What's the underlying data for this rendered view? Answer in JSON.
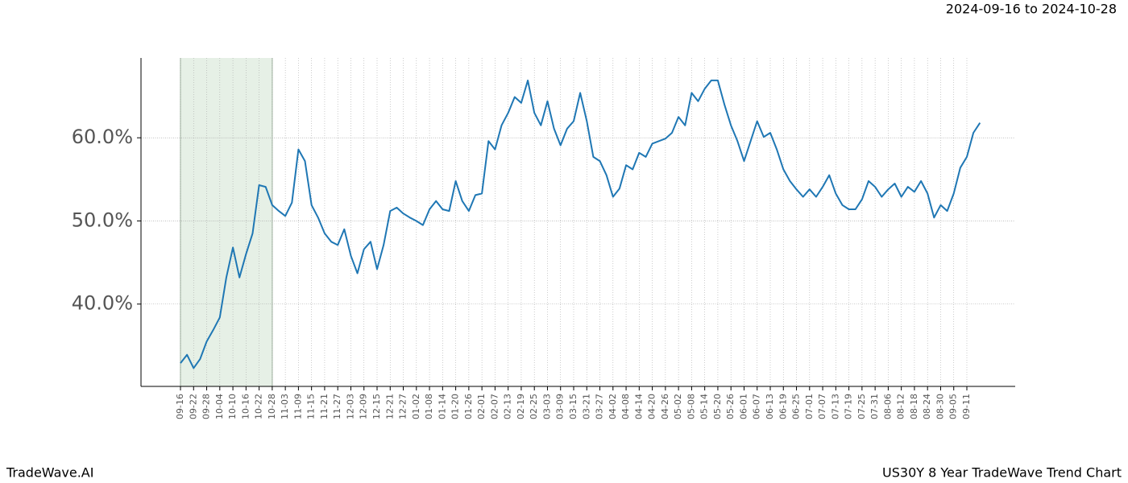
{
  "chart_data": {
    "type": "line",
    "title": "2024-09-16 to 2024-10-28",
    "footer_left": "TradeWave.AI",
    "footer_right": "US30Y 8 Year TradeWave Trend Chart",
    "categories": [
      "09-16",
      null,
      "09-22",
      null,
      "09-28",
      null,
      "10-04",
      null,
      "10-10",
      null,
      "10-16",
      null,
      "10-22",
      null,
      "10-28",
      null,
      "11-03",
      null,
      "11-09",
      null,
      "11-15",
      null,
      "11-21",
      null,
      "11-27",
      null,
      "12-03",
      null,
      "12-09",
      null,
      "12-15",
      null,
      "12-21",
      null,
      "12-27",
      null,
      "01-02",
      null,
      "01-08",
      null,
      "01-14",
      null,
      "01-20",
      null,
      "01-26",
      null,
      "02-01",
      null,
      "02-07",
      null,
      "02-13",
      null,
      "02-19",
      null,
      "02-25",
      null,
      "03-03",
      null,
      "03-09",
      null,
      "03-15",
      null,
      "03-21",
      null,
      "03-27",
      null,
      "04-02",
      null,
      "04-08",
      null,
      "04-14",
      null,
      "04-20",
      null,
      "04-26",
      null,
      "05-02",
      null,
      "05-08",
      null,
      "05-14",
      null,
      "05-20",
      null,
      "05-26",
      null,
      "06-01",
      null,
      "06-07",
      null,
      "06-13",
      null,
      "06-19",
      null,
      "06-25",
      null,
      "07-01",
      null,
      "07-07",
      null,
      "07-13",
      null,
      "07-19",
      null,
      "07-25",
      null,
      "07-31",
      null,
      "08-06",
      null,
      "08-12",
      null,
      "08-18",
      null,
      "08-24",
      null,
      "08-30",
      null,
      "09-05",
      null,
      "09-11",
      null,
      null
    ],
    "series": [
      {
        "color": "#1f77b4",
        "values": [
          32.9,
          33.9,
          32.3,
          33.4,
          35.5,
          36.9,
          38.4,
          43.2,
          46.8,
          43.2,
          46.0,
          48.5,
          54.3,
          54.1,
          51.9,
          51.2,
          50.6,
          52.2,
          58.6,
          57.2,
          51.9,
          50.4,
          48.5,
          47.5,
          47.1,
          49.0,
          45.8,
          43.7,
          46.6,
          47.5,
          44.2,
          47.1,
          51.2,
          51.6,
          50.9,
          50.4,
          50.0,
          49.5,
          51.4,
          52.4,
          51.4,
          51.2,
          54.8,
          52.4,
          51.2,
          53.1,
          53.3,
          59.6,
          58.6,
          61.5,
          63.0,
          64.9,
          64.2,
          66.9,
          63.0,
          61.5,
          64.4,
          61.1,
          59.1,
          61.1,
          62.0,
          65.4,
          62.0,
          57.7,
          57.2,
          55.5,
          52.9,
          53.9,
          56.7,
          56.2,
          58.2,
          57.7,
          59.3,
          59.6,
          59.9,
          60.6,
          62.5,
          61.5,
          65.4,
          64.4,
          65.9,
          66.9,
          66.9,
          64.0,
          61.5,
          59.6,
          57.2,
          59.6,
          62.0,
          60.1,
          60.6,
          58.6,
          56.2,
          54.8,
          53.8,
          52.9,
          53.8,
          52.9,
          54.1,
          55.5,
          53.3,
          51.9,
          51.4,
          51.4,
          52.6,
          54.8,
          54.1,
          52.9,
          53.8,
          54.5,
          52.9,
          54.1,
          53.5,
          54.8,
          53.3,
          50.4,
          51.9,
          51.2,
          53.3,
          56.4,
          57.7,
          60.6,
          61.8
        ]
      }
    ],
    "ylim": [
      30.1,
      69.6
    ],
    "yticks": [
      {
        "value": 40,
        "label": "40.0%"
      },
      {
        "value": 50,
        "label": "50.0%"
      },
      {
        "value": 60,
        "label": "60.0%"
      }
    ],
    "grid": true,
    "shade": [
      0,
      14
    ],
    "shade_color": "#e6f0e6"
  }
}
